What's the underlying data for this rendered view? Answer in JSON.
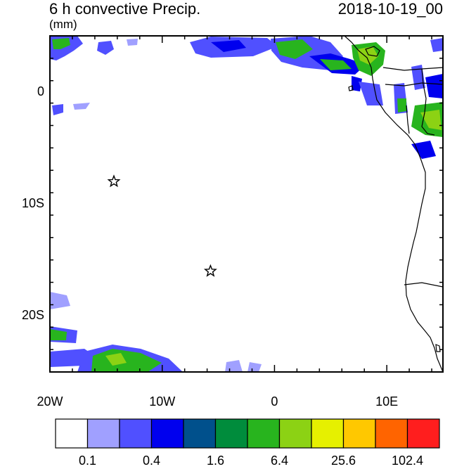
{
  "title": {
    "variable": "6 h convective Precip.",
    "units": "(mm)",
    "datetime": "2018-10-19_00"
  },
  "axes": {
    "lon_range": [
      -20,
      15
    ],
    "lat_range": [
      -25,
      5
    ],
    "y_ticks": [
      {
        "value": 0,
        "label": "0"
      },
      {
        "value": -10,
        "label": "10S"
      },
      {
        "value": -20,
        "label": "20S"
      }
    ],
    "x_ticks": [
      {
        "value": -20,
        "label": "20W"
      },
      {
        "value": -10,
        "label": "10W"
      },
      {
        "value": 0,
        "label": "0"
      },
      {
        "value": 10,
        "label": "10E"
      }
    ]
  },
  "markers": [
    {
      "name": "star-marker",
      "lon": -14.3,
      "lat": -8.0
    },
    {
      "name": "star-marker",
      "lon": -5.7,
      "lat": -16.0
    }
  ],
  "colorbar": {
    "colors": [
      "#ffffff",
      "#a0a0ff",
      "#5050ff",
      "#0000ee",
      "#00508c",
      "#008c3c",
      "#28b41e",
      "#8cd214",
      "#e6f000",
      "#ffc800",
      "#ff6400",
      "#ff1e1e"
    ],
    "labels": [
      {
        "after_box": 1,
        "label": "0.1"
      },
      {
        "after_box": 3,
        "label": "0.4"
      },
      {
        "after_box": 5,
        "label": "1.6"
      },
      {
        "after_box": 7,
        "label": "6.4"
      },
      {
        "after_box": 9,
        "label": "25.6"
      },
      {
        "after_box": 11,
        "label": "102.4"
      }
    ]
  }
}
